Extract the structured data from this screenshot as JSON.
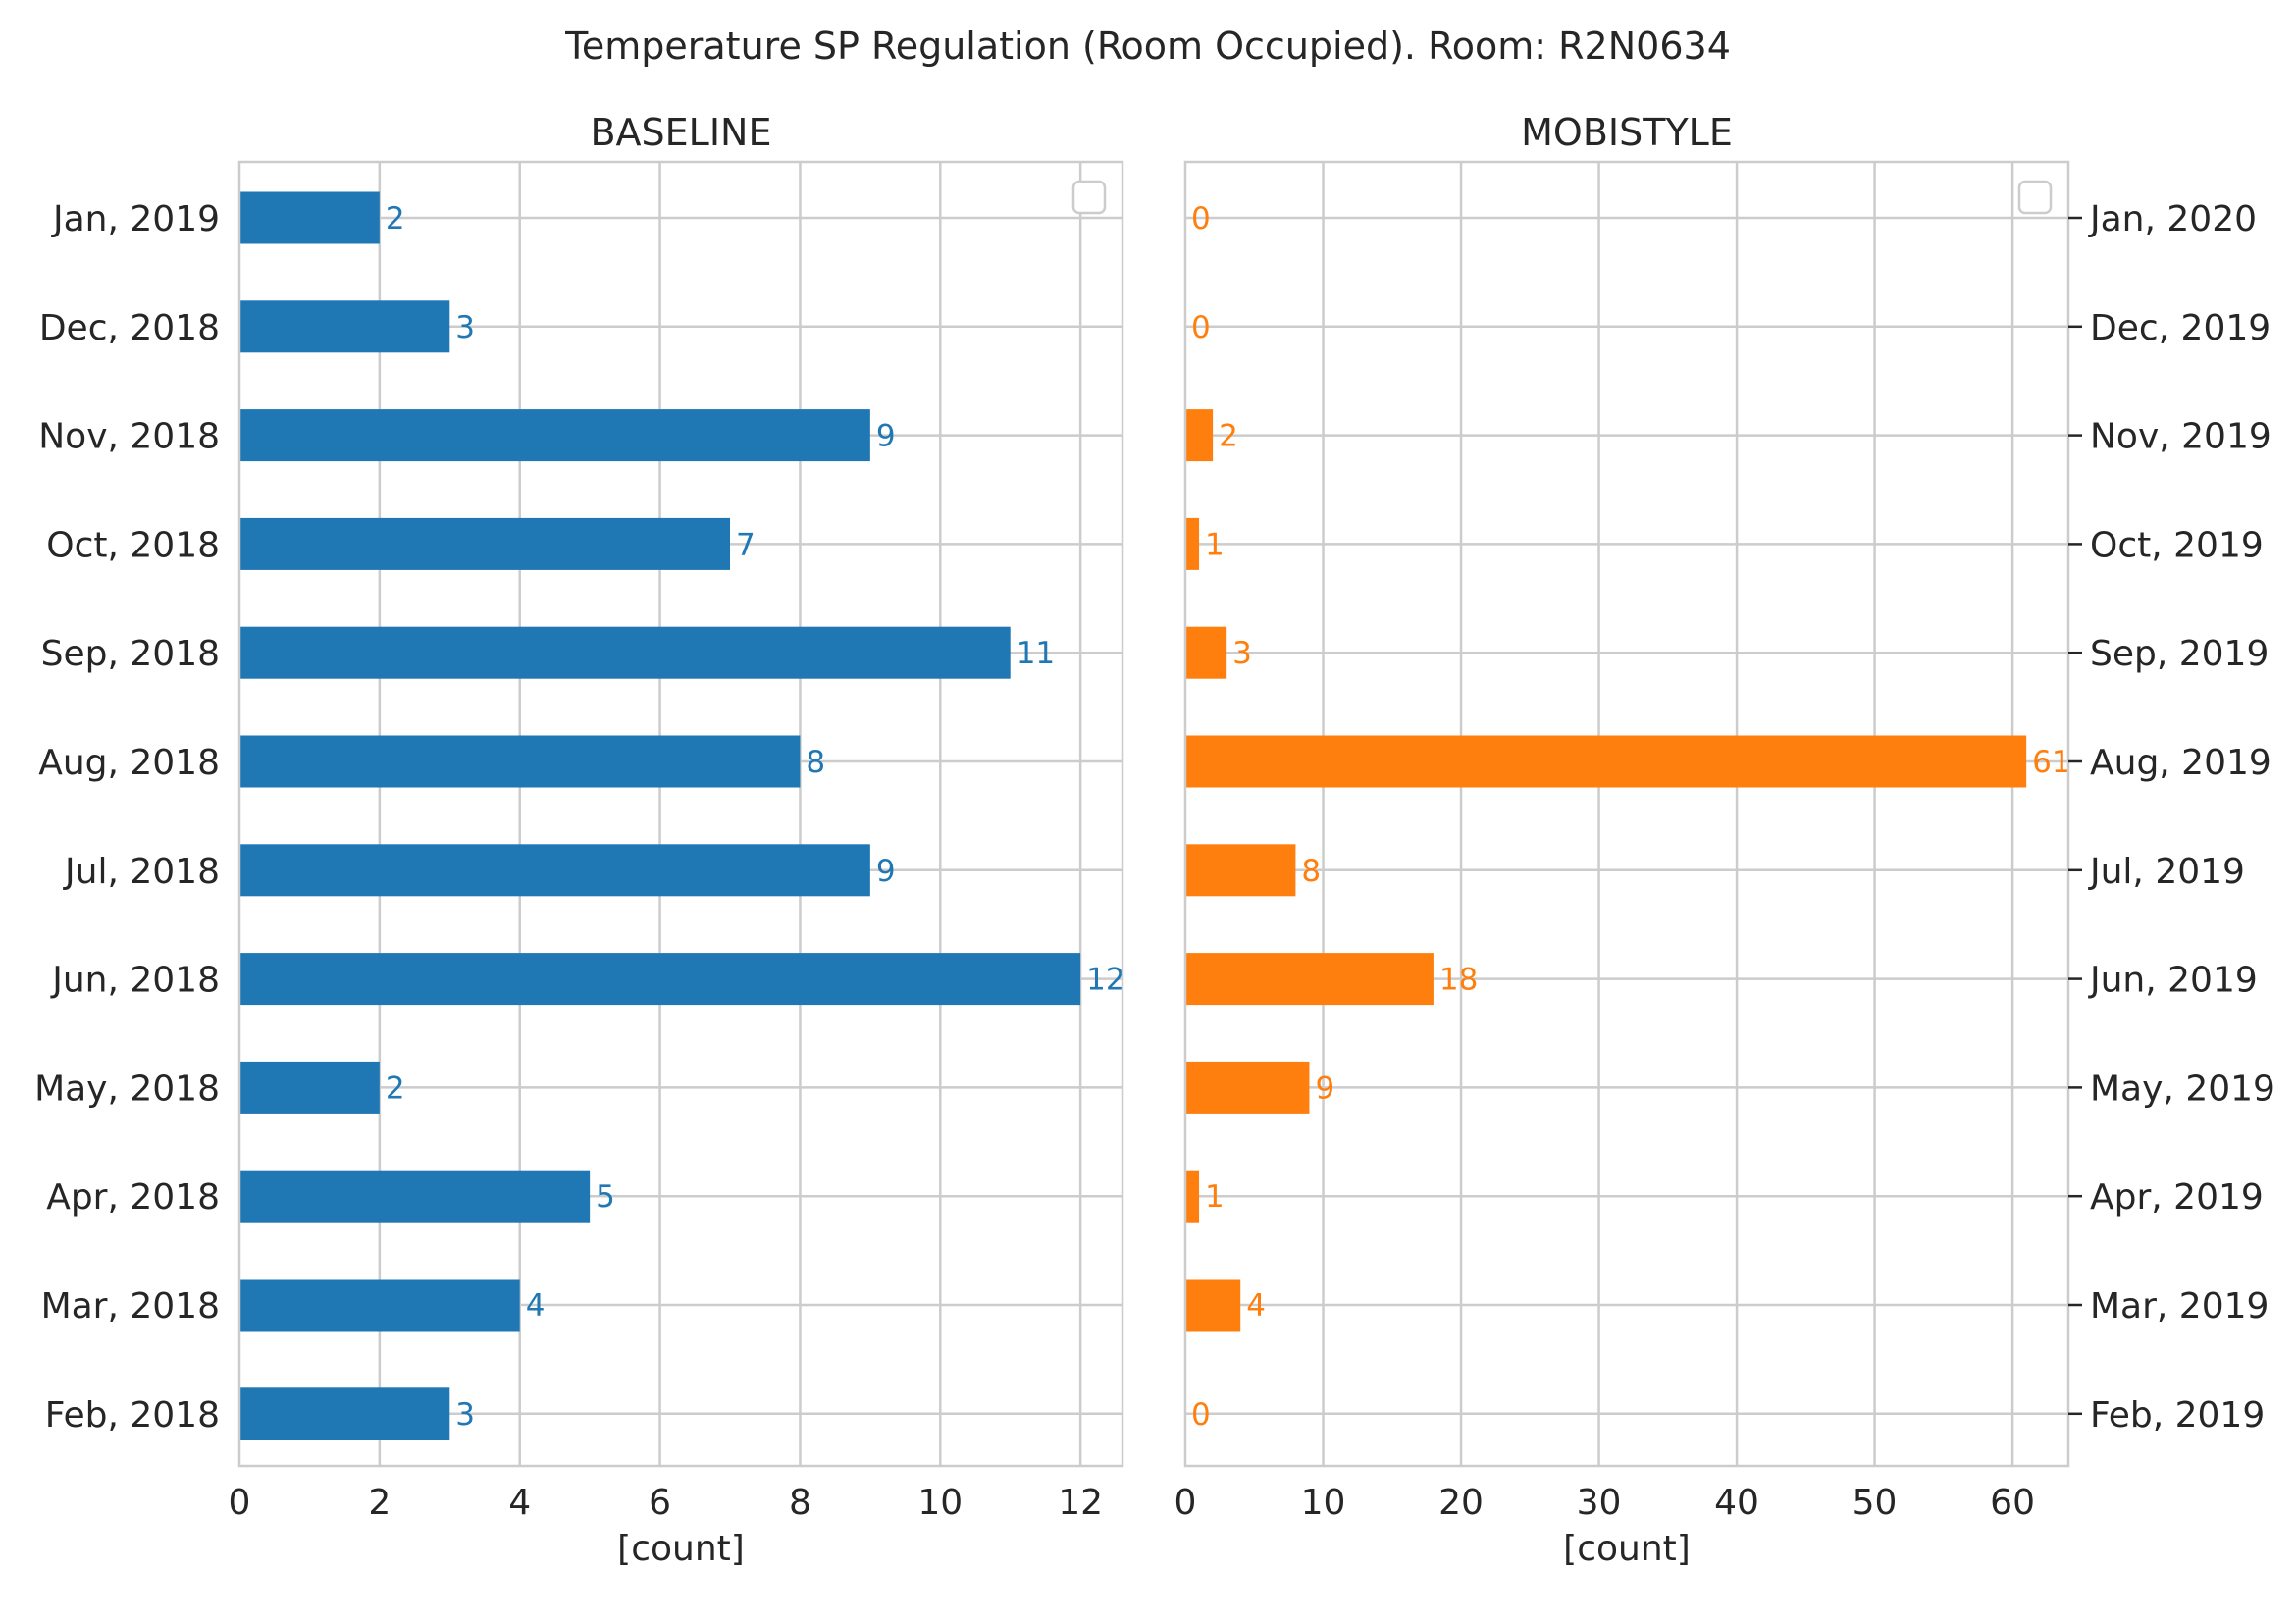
{
  "suptitle": "Temperature SP Regulation (Room Occupied). Room: R2N0634",
  "chart_data": [
    {
      "type": "bar",
      "orientation": "horizontal",
      "title": "BASELINE",
      "xlabel": "[count]",
      "xlim": [
        0,
        12.6
      ],
      "xticks": [
        0,
        2,
        4,
        6,
        8,
        10,
        12
      ],
      "tick_side": "left",
      "color": "#1f77b4",
      "grid": true,
      "legend": "top-right (empty)",
      "categories": [
        "Jan, 2019",
        "Dec, 2018",
        "Nov, 2018",
        "Oct, 2018",
        "Sep, 2018",
        "Aug, 2018",
        "Jul, 2018",
        "Jun, 2018",
        "May, 2018",
        "Apr, 2018",
        "Mar, 2018",
        "Feb, 2018"
      ],
      "values": [
        2,
        3,
        9,
        7,
        11,
        8,
        9,
        12,
        2,
        5,
        4,
        3
      ]
    },
    {
      "type": "bar",
      "orientation": "horizontal",
      "title": "MOBISTYLE",
      "xlabel": "[count]",
      "xlim": [
        0,
        64.05
      ],
      "xticks": [
        0,
        10,
        20,
        30,
        40,
        50,
        60
      ],
      "tick_side": "right",
      "color": "#ff7f0e",
      "grid": true,
      "legend": "top-right (empty)",
      "categories": [
        "Jan, 2020",
        "Dec, 2019",
        "Nov, 2019",
        "Oct, 2019",
        "Sep, 2019",
        "Aug, 2019",
        "Jul, 2019",
        "Jun, 2019",
        "May, 2019",
        "Apr, 2019",
        "Mar, 2019",
        "Feb, 2019"
      ],
      "values": [
        0,
        0,
        2,
        1,
        3,
        61,
        8,
        18,
        9,
        1,
        4,
        0
      ]
    }
  ]
}
